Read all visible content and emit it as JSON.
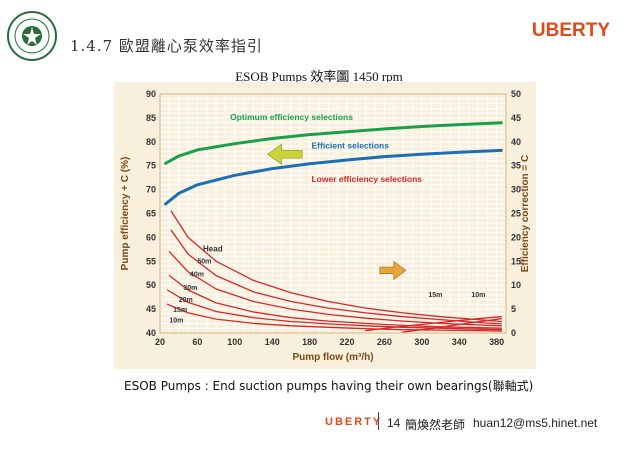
{
  "header": {
    "section_title": "1.4.7 歐盟離心泵效率指引",
    "brand": "UBERTY"
  },
  "chart_title": "ESOB Pumps 效率圖 1450 rpm",
  "caption": "ESOB Pumps : End suction pumps having their own bearings(聯軸式)",
  "footer": {
    "brand": "UBERTY",
    "page": "14",
    "author": "簡煥然老師",
    "email": "huan12@ms5.hinet.net"
  },
  "colors": {
    "brand": "#e0491c",
    "chart_bg": "#f8efdc",
    "grid": "#ffffff",
    "optimum": "#1aa04a",
    "efficient": "#1c6fb5",
    "lower": "#d62828",
    "axis_label": "#7a4a14"
  },
  "chart_data": {
    "type": "line",
    "xlabel": "Pump flow (m³/h)",
    "ylabel": "Pump efficiency + C (%)",
    "y2label": "Efficiency correction = C",
    "xlim": [
      20,
      390
    ],
    "ylim": [
      40,
      90
    ],
    "y2lim": [
      0,
      50
    ],
    "x_ticks": [
      "20",
      "60",
      "100",
      "140",
      "180",
      "220",
      "260",
      "300",
      "340",
      "380"
    ],
    "y_ticks": [
      "40",
      "45",
      "50",
      "55",
      "60",
      "65",
      "70",
      "75",
      "80",
      "85",
      "90"
    ],
    "y2_ticks": [
      "0",
      "5",
      "10",
      "15",
      "20",
      "25",
      "30",
      "35",
      "40",
      "45",
      "50"
    ],
    "grid": true,
    "annotations": {
      "optimum": "Optimum efficiency selections",
      "efficient": "Efficient selections",
      "lower": "Lower efficiency selections",
      "head": "Head"
    },
    "series": [
      {
        "name": "Optimum efficiency selections",
        "axis": "left",
        "x": [
          26,
          40,
          60,
          100,
          140,
          180,
          220,
          260,
          300,
          340,
          385
        ],
        "y": [
          75.5,
          77,
          78.3,
          79.6,
          80.7,
          81.5,
          82.1,
          82.7,
          83.2,
          83.6,
          84
        ]
      },
      {
        "name": "Efficient selections",
        "axis": "left",
        "x": [
          26,
          40,
          60,
          100,
          140,
          180,
          220,
          260,
          300,
          340,
          385
        ],
        "y": [
          67,
          69.2,
          71,
          73,
          74.4,
          75.4,
          76.2,
          76.9,
          77.4,
          77.8,
          78.2
        ]
      },
      {
        "name": "50m",
        "axis": "right",
        "x": [
          32,
          50,
          80,
          120,
          160,
          200,
          240,
          280,
          320,
          360,
          385
        ],
        "y": [
          25.5,
          20,
          15,
          11,
          8.4,
          6.6,
          5.2,
          4.2,
          3.4,
          2.8,
          2.4
        ]
      },
      {
        "name": "40m",
        "axis": "right",
        "x": [
          32,
          50,
          80,
          120,
          160,
          200,
          240,
          280,
          320,
          360,
          385
        ],
        "y": [
          21.5,
          16.5,
          12,
          8.6,
          6.6,
          5.2,
          4.2,
          3.4,
          2.8,
          2.2,
          1.9
        ]
      },
      {
        "name": "30m",
        "axis": "right",
        "x": [
          30,
          50,
          80,
          120,
          160,
          200,
          240,
          280,
          320,
          360,
          385
        ],
        "y": [
          17,
          12.8,
          9.2,
          6.6,
          5,
          3.9,
          3.1,
          2.5,
          2,
          1.7,
          1.5
        ]
      },
      {
        "name": "20m",
        "axis": "right",
        "x": [
          30,
          50,
          80,
          120,
          160,
          200,
          240,
          280,
          320,
          360,
          385
        ],
        "y": [
          12,
          9,
          6.3,
          4.4,
          3.2,
          2.5,
          2,
          1.6,
          1.3,
          1.1,
          1
        ]
      },
      {
        "name": "15m",
        "axis": "right",
        "x": [
          28,
          50,
          80,
          120,
          160,
          200,
          240,
          280,
          320,
          360,
          385
        ],
        "y": [
          9,
          6.4,
          4.5,
          3.2,
          2.4,
          1.9,
          1.5,
          1.2,
          1,
          0.8,
          0.7
        ]
      },
      {
        "name": "10m",
        "axis": "right",
        "x": [
          28,
          50,
          80,
          120,
          160,
          200,
          240,
          280,
          320,
          360,
          385
        ],
        "y": [
          6,
          4.2,
          2.9,
          2,
          1.5,
          1.2,
          0.9,
          0.7,
          0.6,
          0.5,
          0.4
        ]
      },
      {
        "name": "15m",
        "axis": "right",
        "x": [
          240,
          270,
          300,
          330,
          360,
          385
        ],
        "y": [
          0.5,
          1.2,
          1.8,
          2.4,
          3.0,
          3.4
        ]
      },
      {
        "name": "10m",
        "axis": "right",
        "x": [
          280,
          305,
          330,
          355,
          385
        ],
        "y": [
          0.2,
          0.8,
          1.5,
          2.2,
          3.0
        ]
      }
    ]
  }
}
